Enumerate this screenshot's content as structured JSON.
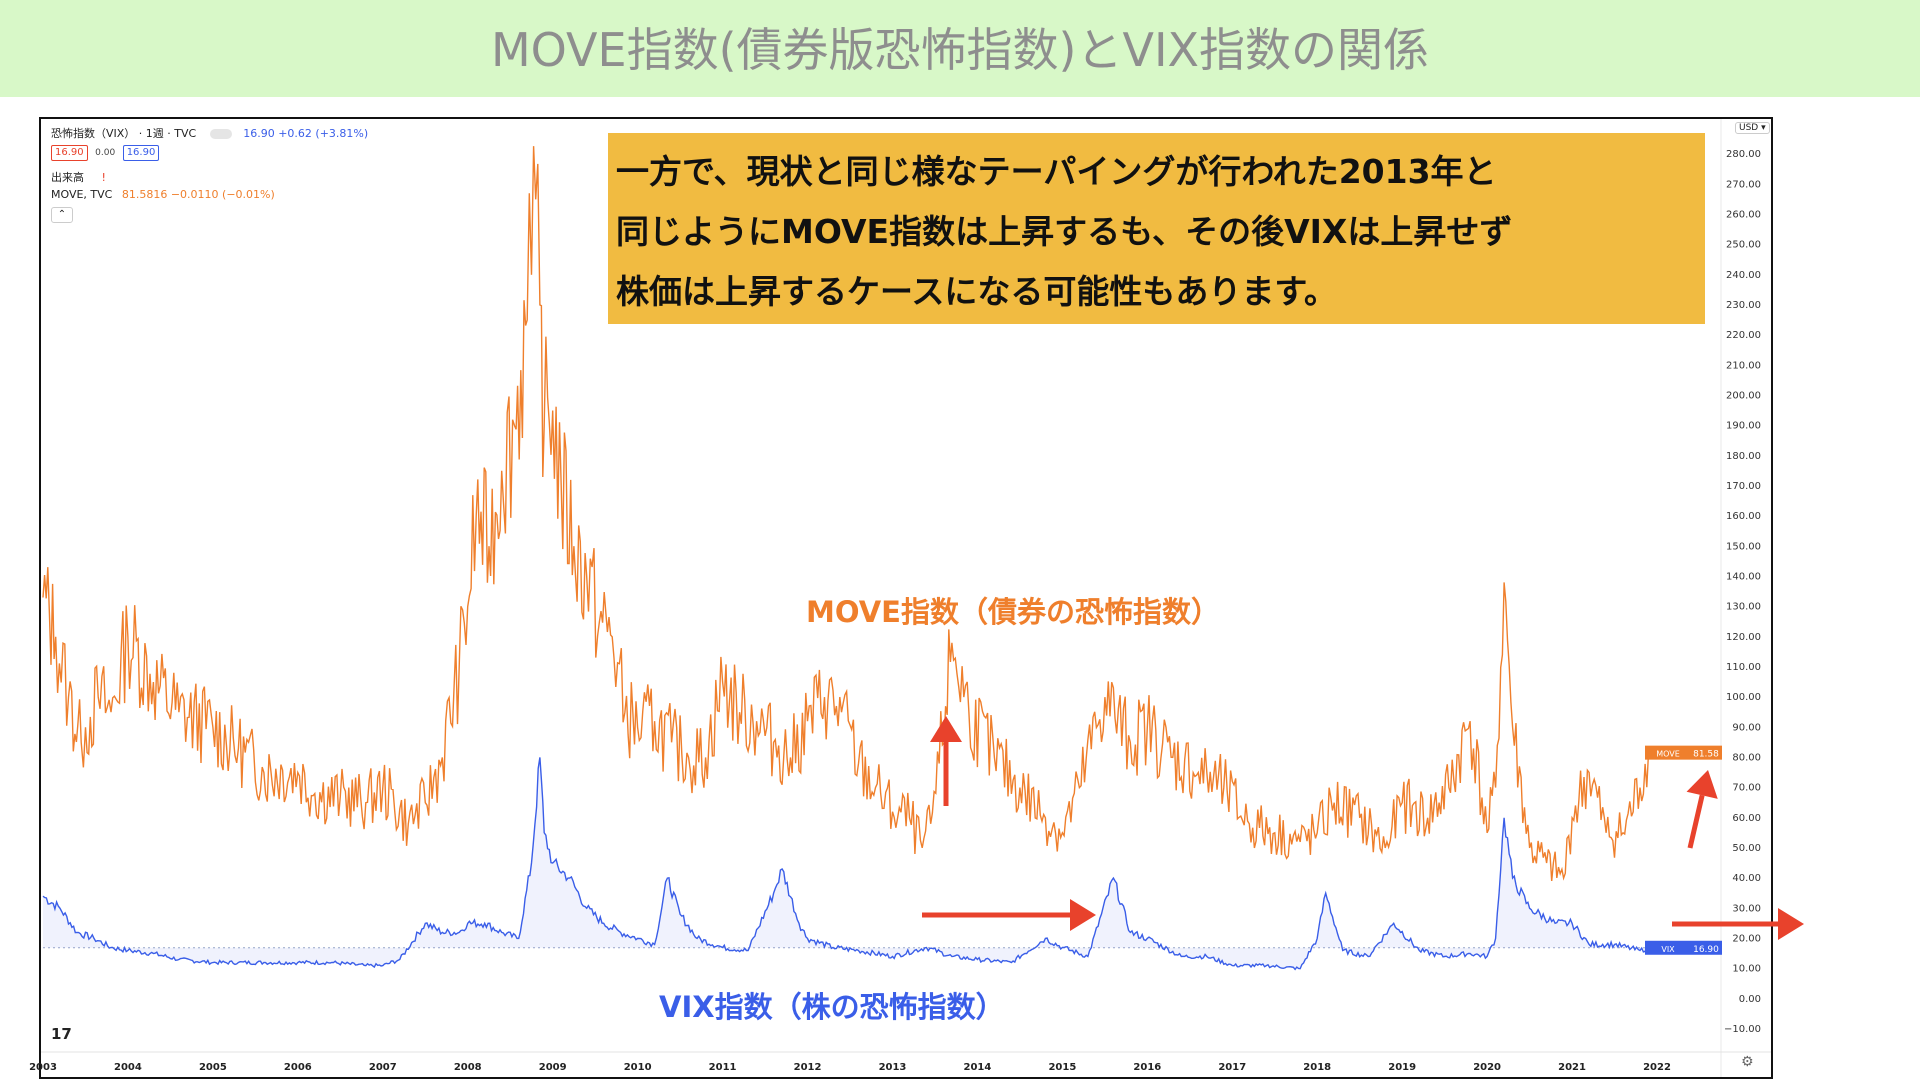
{
  "title": "MOVE指数(債券版恐怖指数)とVIX指数の関係",
  "legend": {
    "symbol_line": "恐怖指数（VIX） · 1週 · TVC",
    "quote": "16.90 +0.62 (+3.81%)",
    "bid": "16.90",
    "spread": "0.00",
    "ask": "16.90",
    "volume": "出来高",
    "move_line": "MOVE, TVC",
    "move_quote": "81.5816 −0.0110 (−0.01%)",
    "currency": "USD"
  },
  "callout": {
    "line1": "一方で、現状と同じ様なテーパイングが行われた2013年と",
    "line2": "同じようにMOVE指数は上昇するも、その後VIXは上昇せず",
    "line3": "株価は上昇するケースになる可能性もあります。"
  },
  "labels": {
    "move": "MOVE指数（債券の恐怖指数）",
    "vix": "VIX指数（株の恐怖指数）",
    "move_tag": "MOVE",
    "move_tag_value": "81.58",
    "vix_tag": "VIX",
    "vix_tag_value": "16.90"
  },
  "colors": {
    "move": "#ef7f2c",
    "vix": "#3a5ee8",
    "arrow": "#e8422c",
    "banner": "#d8f8c8",
    "callout": "#f1bb41"
  },
  "chart_data": {
    "type": "line",
    "x_axis": {
      "range": [
        2003,
        2022.4
      ],
      "ticks": [
        "2003",
        "2004",
        "2005",
        "2006",
        "2007",
        "2008",
        "2009",
        "2010",
        "2011",
        "2012",
        "2013",
        "2014",
        "2015",
        "2016",
        "2017",
        "2018",
        "2019",
        "2020",
        "2021",
        "2022"
      ]
    },
    "y_axis": {
      "range": [
        -15,
        285
      ],
      "ticks": [
        "280.00",
        "270.00",
        "260.00",
        "250.00",
        "240.00",
        "230.00",
        "220.00",
        "210.00",
        "200.00",
        "190.00",
        "180.00",
        "170.00",
        "160.00",
        "150.00",
        "140.00",
        "130.00",
        "120.00",
        "110.00",
        "100.00",
        "90.00",
        "80.00",
        "70.00",
        "60.00",
        "50.00",
        "40.00",
        "30.00",
        "20.00",
        "10.00",
        "0.00",
        "−10.00"
      ],
      "position": "right"
    },
    "series": [
      {
        "name": "MOVE",
        "x": [
          2003.0,
          2003.15,
          2003.3,
          2003.45,
          2003.5,
          2003.65,
          2003.8,
          2004.0,
          2004.3,
          2004.6,
          2005.0,
          2005.3,
          2005.6,
          2006.0,
          2006.2,
          2006.5,
          2006.8,
          2007.0,
          2007.3,
          2007.5,
          2007.7,
          2007.9,
          2008.0,
          2008.1,
          2008.25,
          2008.4,
          2008.55,
          2008.7,
          2008.75,
          2008.8,
          2008.85,
          2008.9,
          2009.0,
          2009.1,
          2009.25,
          2009.4,
          2009.55,
          2009.7,
          2009.85,
          2010.0,
          2010.2,
          2010.4,
          2010.6,
          2010.8,
          2011.0,
          2011.2,
          2011.4,
          2011.6,
          2011.8,
          2012.0,
          2012.2,
          2012.4,
          2012.6,
          2012.8,
          2013.0,
          2013.2,
          2013.35,
          2013.45,
          2013.55,
          2013.7,
          2013.9,
          2014.2,
          2014.5,
          2014.8,
          2015.0,
          2015.2,
          2015.5,
          2015.8,
          2016.0,
          2016.3,
          2016.6,
          2016.9,
          2017.2,
          2017.5,
          2017.8,
          2018.0,
          2018.2,
          2018.5,
          2018.8,
          2019.0,
          2019.3,
          2019.55,
          2019.8,
          2020.0,
          2020.1,
          2020.2,
          2020.3,
          2020.5,
          2020.7,
          2020.9,
          2021.0,
          2021.2,
          2021.4,
          2021.6,
          2021.8,
          2021.9
        ],
        "values": [
          133,
          120,
          100,
          85,
          90,
          100,
          95,
          120,
          105,
          95,
          90,
          83,
          75,
          75,
          68,
          67,
          65,
          70,
          58,
          65,
          80,
          110,
          130,
          160,
          150,
          175,
          190,
          225,
          240,
          265,
          230,
          190,
          195,
          170,
          150,
          140,
          125,
          120,
          95,
          90,
          92,
          85,
          80,
          80,
          105,
          95,
          92,
          85,
          80,
          92,
          100,
          95,
          78,
          70,
          62,
          60,
          50,
          58,
          78,
          118,
          95,
          80,
          70,
          60,
          55,
          70,
          100,
          85,
          90,
          80,
          75,
          70,
          58,
          55,
          52,
          55,
          65,
          60,
          50,
          65,
          60,
          70,
          92,
          55,
          70,
          138,
          90,
          50,
          45,
          40,
          60,
          75,
          55,
          55,
          70,
          81.58
        ]
      },
      {
        "name": "VIX",
        "x": [
          2003.0,
          2003.2,
          2003.4,
          2003.6,
          2003.8,
          2004.0,
          2004.3,
          2004.6,
          2005.0,
          2005.3,
          2005.6,
          2006.0,
          2006.4,
          2006.8,
          2007.0,
          2007.2,
          2007.5,
          2007.7,
          2007.9,
          2008.0,
          2008.2,
          2008.4,
          2008.6,
          2008.75,
          2008.85,
          2008.9,
          2009.0,
          2009.2,
          2009.4,
          2009.6,
          2009.8,
          2010.0,
          2010.2,
          2010.35,
          2010.5,
          2010.7,
          2011.0,
          2011.3,
          2011.6,
          2011.7,
          2011.9,
          2012.0,
          2012.3,
          2012.6,
          2013.0,
          2013.4,
          2013.7,
          2014.0,
          2014.4,
          2014.8,
          2015.0,
          2015.3,
          2015.6,
          2015.8,
          2016.0,
          2016.4,
          2016.7,
          2017.0,
          2017.4,
          2017.8,
          2018.0,
          2018.1,
          2018.3,
          2018.6,
          2018.9,
          2019.2,
          2019.5,
          2019.8,
          2020.0,
          2020.1,
          2020.2,
          2020.3,
          2020.5,
          2020.8,
          2021.0,
          2021.2,
          2021.5,
          2021.8,
          2021.9
        ],
        "values": [
          34,
          30,
          22,
          20,
          17,
          16,
          15,
          13,
          12,
          12,
          12,
          12,
          12,
          11,
          11,
          13,
          25,
          22,
          22,
          25,
          25,
          22,
          20,
          45,
          80,
          55,
          45,
          40,
          30,
          25,
          22,
          20,
          18,
          40,
          28,
          20,
          17,
          16,
          35,
          43,
          25,
          20,
          17,
          16,
          14,
          17,
          14,
          13,
          12,
          20,
          17,
          14,
          40,
          22,
          20,
          14,
          14,
          11,
          11,
          10,
          20,
          35,
          16,
          14,
          25,
          16,
          14,
          15,
          14,
          20,
          60,
          40,
          30,
          25,
          25,
          18,
          18,
          16,
          16.9
        ]
      }
    ]
  }
}
